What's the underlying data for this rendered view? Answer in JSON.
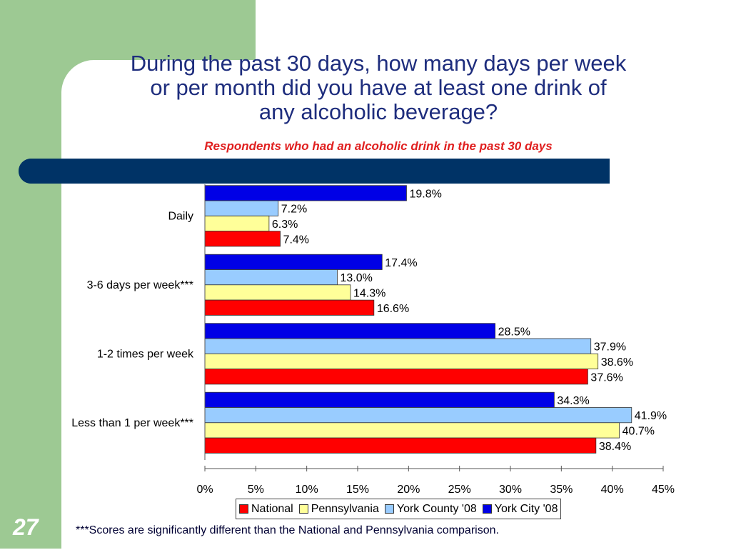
{
  "slide": {
    "title_line1": "During the past 30 days, how many days per week",
    "title_line2": "or per month did you have at least one drink of",
    "title_line3": "any alcoholic beverage?",
    "subtitle": "Respondents who had an alcoholic drink in the past 30 days",
    "page_number": "27",
    "footnote": "***Scores are significantly different than the National and Pennsylvania comparison."
  },
  "colors": {
    "York City '08": "#0000e6",
    "York County '08": "#99ccff",
    "Pennsylvania": "#ffff99",
    "National": "#ff0000"
  },
  "chart_data": {
    "type": "bar",
    "orientation": "horizontal",
    "categories": [
      "Daily",
      "3-6 days per week***",
      "1-2 times per week",
      "Less than 1 per week***"
    ],
    "series": [
      {
        "name": "York City '08",
        "values": [
          19.8,
          17.4,
          28.5,
          34.3
        ]
      },
      {
        "name": "York County '08",
        "values": [
          7.2,
          13.0,
          37.9,
          41.9
        ]
      },
      {
        "name": "Pennsylvania",
        "values": [
          6.3,
          14.3,
          38.6,
          40.7
        ]
      },
      {
        "name": "National",
        "values": [
          7.4,
          16.6,
          37.6,
          38.4
        ]
      }
    ],
    "xlim": [
      0,
      45
    ],
    "xticks": [
      "0%",
      "5%",
      "10%",
      "15%",
      "20%",
      "25%",
      "30%",
      "35%",
      "40%",
      "45%"
    ],
    "value_format": "percent_one_decimal",
    "grid": false,
    "legend_position": "bottom",
    "legend_order": [
      "National",
      "Pennsylvania",
      "York County '08",
      "York City '08"
    ]
  }
}
